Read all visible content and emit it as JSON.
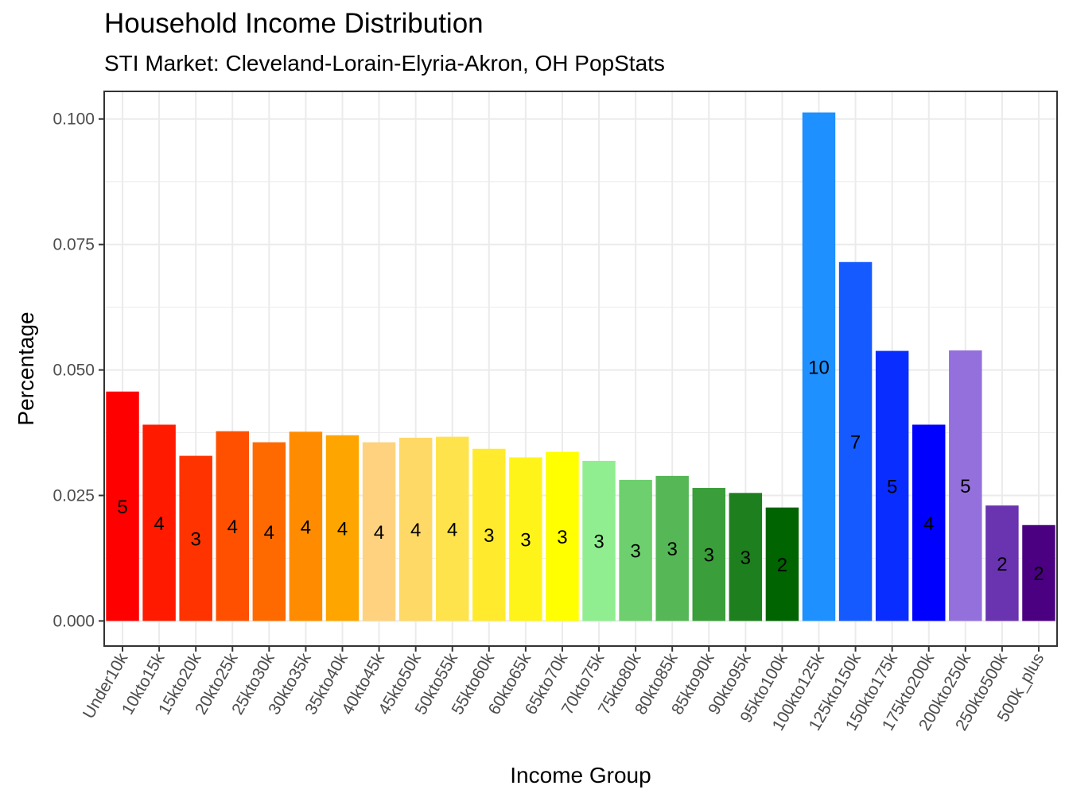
{
  "chart_data": {
    "type": "bar",
    "title": "Household Income Distribution",
    "subtitle": "STI Market: Cleveland-Lorain-Elyria-Akron, OH PopStats",
    "xlabel": "Income Group",
    "ylabel": "Percentage",
    "ylim": [
      -0.005,
      0.1055
    ],
    "yticks": [
      0.0,
      0.025,
      0.05,
      0.075,
      0.1
    ],
    "ytick_labels": [
      "0.000",
      "0.025",
      "0.050",
      "0.075",
      "0.100"
    ],
    "grid": true,
    "legend": "none",
    "categories": [
      "Under10k",
      "10kto15k",
      "15kto20k",
      "20kto25k",
      "25kto30k",
      "30kto35k",
      "35kto40k",
      "40kto45k",
      "45kto50k",
      "50kto55k",
      "55kto60k",
      "60kto65k",
      "65kto70k",
      "70kto75k",
      "75kto80k",
      "80kto85k",
      "85kto90k",
      "90kto95k",
      "95kto100k",
      "100kto125k",
      "125kto150k",
      "150kto175k",
      "175kto200k",
      "200kto250k",
      "250kto500k",
      "500k_plus"
    ],
    "values": [
      0.0457,
      0.0391,
      0.0329,
      0.0378,
      0.0356,
      0.0377,
      0.037,
      0.0356,
      0.0365,
      0.0367,
      0.0343,
      0.0326,
      0.0337,
      0.0319,
      0.0281,
      0.0289,
      0.0265,
      0.0255,
      0.0226,
      0.1013,
      0.0715,
      0.0538,
      0.0391,
      0.0539,
      0.023,
      0.0191
    ],
    "labels": [
      "5",
      "4",
      "3",
      "4",
      "4",
      "4",
      "4",
      "4",
      "4",
      "4",
      "3",
      "3",
      "3",
      "3",
      "3",
      "3",
      "3",
      "3",
      "2",
      "10",
      "7",
      "5",
      "4",
      "5",
      "2",
      "2"
    ],
    "colors": [
      "#FF0000",
      "#FF1A00",
      "#FF3300",
      "#FF5000",
      "#FF6A00",
      "#FF8C00",
      "#FFA500",
      "#FFD27F",
      "#FFD966",
      "#FFE34D",
      "#FFEA2E",
      "#FFF41A",
      "#FFFF00",
      "#90EE90",
      "#6DCF6D",
      "#55B755",
      "#3A9E3A",
      "#1E7F1E",
      "#006400",
      "#1E90FF",
      "#145AFF",
      "#0A2DFF",
      "#0000FF",
      "#9370DB",
      "#6A33B0",
      "#4B0082"
    ]
  }
}
